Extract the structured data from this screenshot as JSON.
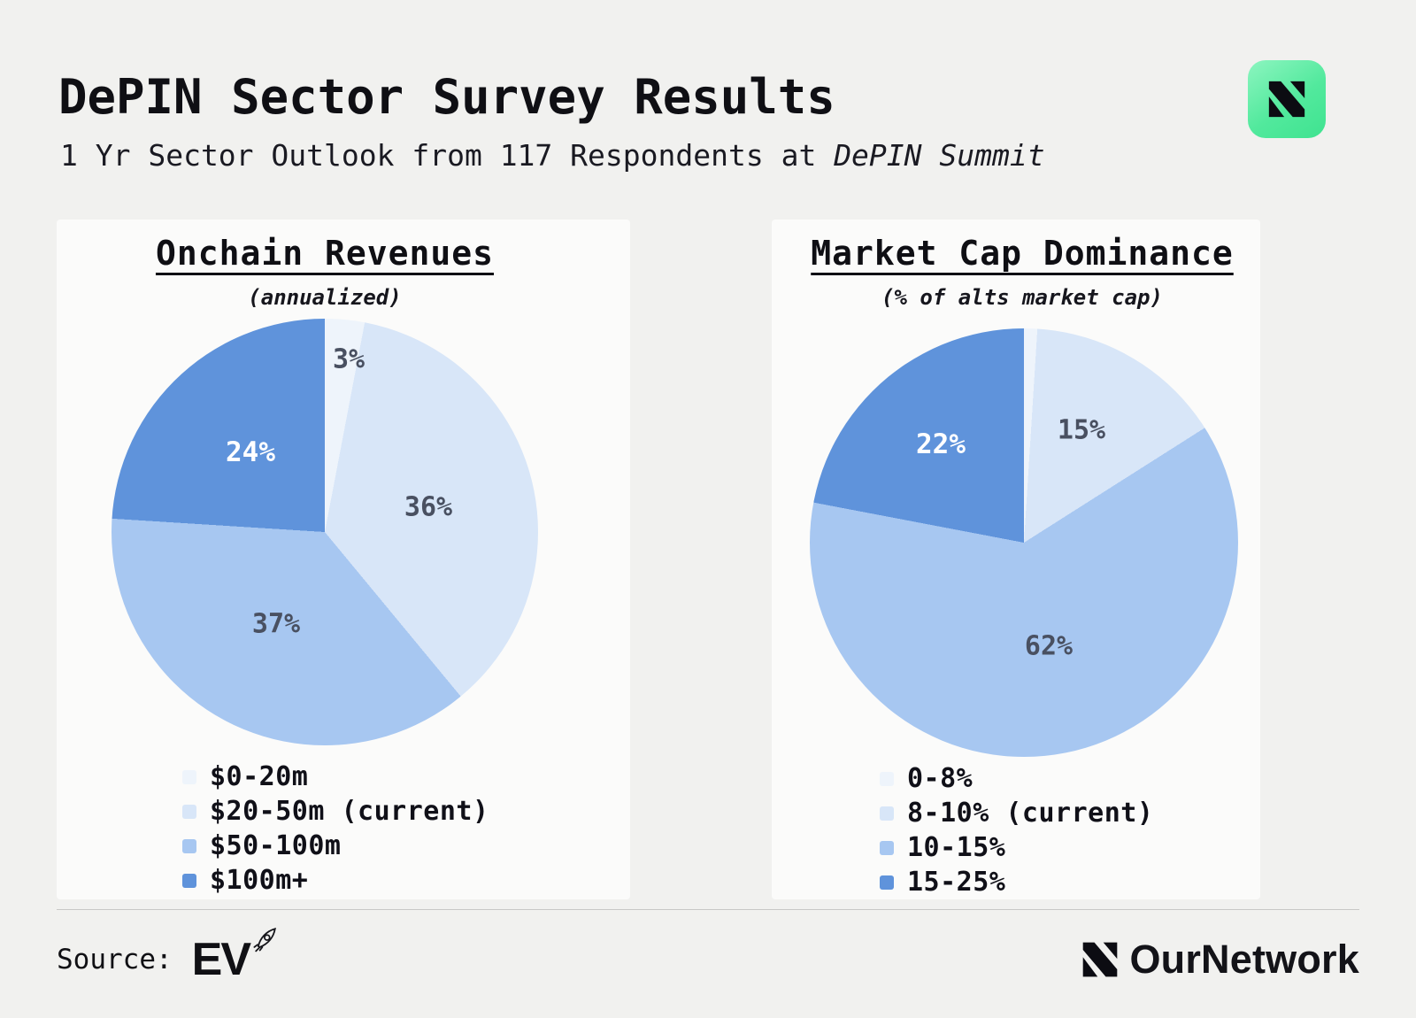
{
  "header": {
    "title": "DePIN Sector Survey Results",
    "subtitle": "1 Yr Sector Outlook from 117 Respondents at ",
    "subtitle_em": "DePIN Summit"
  },
  "chart_data": [
    {
      "type": "pie",
      "title": "Onchain Revenues",
      "subtitle": "(annualized)",
      "labels": [
        "$0-20m",
        "$20-50m (current)",
        "$50-100m",
        "$100m+"
      ],
      "values": [
        3,
        36,
        37,
        24
      ],
      "slice_labels": [
        "3%",
        "36%",
        "37%",
        "24%"
      ],
      "colors": [
        "#eef4fb",
        "#d8e6f8",
        "#a7c7f1",
        "#5f93db"
      ],
      "legend_position": "bottom-left"
    },
    {
      "type": "pie",
      "title": "Market Cap Dominance",
      "subtitle": "(% of alts market cap)",
      "labels": [
        "0-8%",
        "8-10% (current)",
        "10-15%",
        "15-25%"
      ],
      "values": [
        1,
        15,
        62,
        22
      ],
      "slice_labels": [
        "",
        "15%",
        "62%",
        "22%"
      ],
      "colors": [
        "#eef4fb",
        "#d8e6f8",
        "#a7c7f1",
        "#5f93db"
      ],
      "legend_position": "bottom-left"
    }
  ],
  "icons": {
    "app_badge": "ournetwork-n-icon",
    "brand_mark": "ournetwork-n-icon",
    "source_rocket": "rocket-doodle-icon"
  },
  "colors": {
    "background": "#f1f1ef",
    "panel": "#fbfbfa",
    "badge_green": "#52e99d",
    "text": "#0f0f14"
  },
  "footer": {
    "source_label": "Source:",
    "source_name": "EV",
    "brand_name": "OurNetwork"
  }
}
